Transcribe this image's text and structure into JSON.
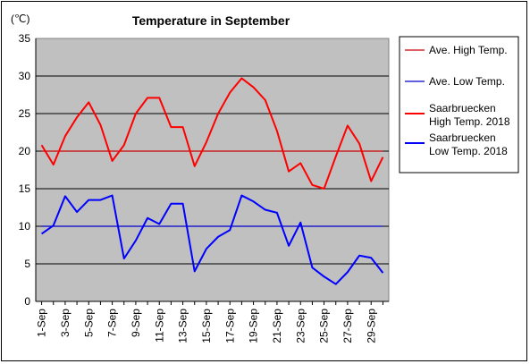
{
  "chart_data": {
    "type": "line",
    "title": "Temperature in September",
    "unit_label": "(℃)",
    "ylim": [
      0,
      35
    ],
    "yticks": [
      0,
      5,
      10,
      15,
      20,
      25,
      30,
      35
    ],
    "grid": true,
    "legend_position": "right",
    "x": [
      "1-Sep",
      "2-Sep",
      "3-Sep",
      "4-Sep",
      "5-Sep",
      "6-Sep",
      "7-Sep",
      "8-Sep",
      "9-Sep",
      "10-Sep",
      "11-Sep",
      "12-Sep",
      "13-Sep",
      "14-Sep",
      "15-Sep",
      "16-Sep",
      "17-Sep",
      "18-Sep",
      "19-Sep",
      "20-Sep",
      "21-Sep",
      "22-Sep",
      "23-Sep",
      "24-Sep",
      "25-Sep",
      "26-Sep",
      "27-Sep",
      "28-Sep",
      "29-Sep",
      "30-Sep"
    ],
    "xtick_labels": [
      "1-Sep",
      "3-Sep",
      "5-Sep",
      "7-Sep",
      "9-Sep",
      "11-Sep",
      "13-Sep",
      "15-Sep",
      "17-Sep",
      "19-Sep",
      "21-Sep",
      "23-Sep",
      "25-Sep",
      "27-Sep",
      "29-Sep"
    ],
    "series": [
      {
        "name": "Ave. High Temp.",
        "color": "#cc0000",
        "constant": 20.0
      },
      {
        "name": "Ave. Low Temp.",
        "color": "#0000cc",
        "constant": 10.0
      },
      {
        "name": "Saarbruecken High Temp. 2018",
        "label_lines": [
          "Saarbruecken",
          "High Temp. 2018"
        ],
        "color": "#ff0000",
        "values": [
          20.8,
          18.2,
          22.0,
          24.5,
          26.5,
          23.5,
          18.7,
          20.8,
          25.0,
          27.1,
          27.1,
          23.2,
          23.2,
          18.0,
          21.2,
          25.0,
          27.8,
          29.7,
          28.5,
          26.8,
          22.7,
          17.3,
          18.4,
          15.5,
          15.0,
          19.3,
          23.4,
          21.0,
          16.0,
          19.2
        ]
      },
      {
        "name": "Saarbruecken Low Temp. 2018",
        "label_lines": [
          "Saarbruecken",
          "Low Temp. 2018"
        ],
        "color": "#0000ff",
        "values": [
          9.0,
          10.1,
          14.0,
          11.9,
          13.5,
          13.5,
          14.1,
          5.7,
          8.1,
          11.1,
          10.3,
          13.0,
          13.0,
          4.0,
          7.0,
          8.6,
          9.5,
          14.1,
          13.3,
          12.2,
          11.8,
          7.4,
          10.5,
          4.5,
          3.3,
          2.3,
          3.9,
          6.1,
          5.8,
          3.8
        ]
      }
    ]
  }
}
